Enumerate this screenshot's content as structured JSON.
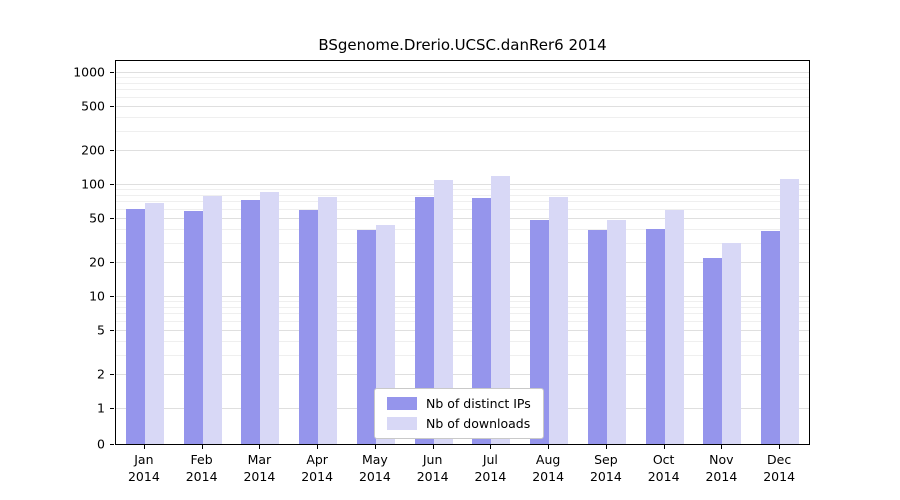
{
  "chart_data": {
    "type": "bar",
    "title": "BSgenome.Drerio.UCSC.danRer6 2014",
    "year_label": "2014",
    "categories": [
      "Jan",
      "Feb",
      "Mar",
      "Apr",
      "May",
      "Jun",
      "Jul",
      "Aug",
      "Sep",
      "Oct",
      "Nov",
      "Dec"
    ],
    "series": [
      {
        "name": "Nb of distinct IPs",
        "color": "#9595ec",
        "values": [
          60,
          57,
          72,
          59,
          39,
          77,
          75,
          48,
          39,
          40,
          22,
          38
        ]
      },
      {
        "name": "Nb of downloads",
        "color": "#d8d8f6",
        "values": [
          68,
          78,
          85,
          77,
          43,
          108,
          117,
          77,
          48,
          59,
          30,
          110
        ]
      }
    ],
    "yscale": "log",
    "yticks": [
      0,
      1,
      2,
      5,
      10,
      20,
      50,
      100,
      200,
      500,
      1000
    ],
    "ylim": [
      0,
      1000
    ],
    "grid": true,
    "legend_position": "bottom-center"
  }
}
